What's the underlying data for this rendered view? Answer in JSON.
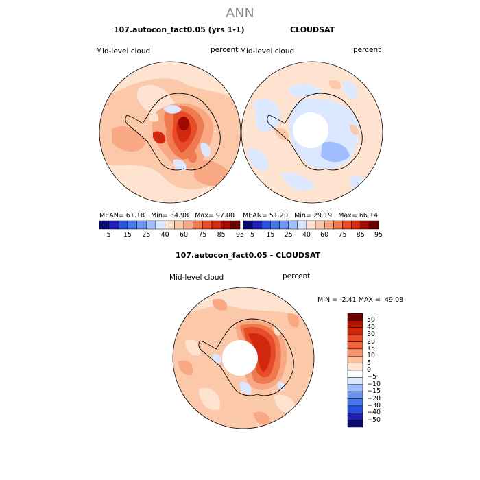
{
  "page_title": "ANN",
  "colors": {
    "continent_line": "#000000",
    "mask": "#ffffff",
    "bg_panel": "#fde3d0"
  },
  "panels": [
    {
      "title": "107.autocon_fact0.05 (yrs 1-1)",
      "left_label": "Mid-level cloud",
      "right_label": "percent",
      "stats": {
        "mean_label": "MEAN=",
        "mean": "61.18",
        "min_label": "Min=",
        "min": "34.98",
        "max_label": "Max=",
        "max": "97.00"
      }
    },
    {
      "title": "CLOUDSAT",
      "left_label": "Mid-level cloud",
      "right_label": "percent",
      "stats": {
        "mean_label": "MEAN=",
        "mean": "51.20",
        "min_label": "Min=",
        "min": "29.19",
        "max_label": "Max=",
        "max": "66.14"
      }
    },
    {
      "title": "107.autocon_fact0.05 - CLOUDSAT",
      "left_label": "Mid-level cloud",
      "right_label": "percent",
      "stats": {
        "min_label": "MIN =",
        "min": "-2.41",
        "max_label": "MAX =",
        "max": "49.08"
      }
    }
  ],
  "colorbar_abs": {
    "colors": [
      "#0a0a6e",
      "#1e1eb4",
      "#2850dc",
      "#4678eb",
      "#6e96f0",
      "#a0beff",
      "#dce8ff",
      "#fde3d0",
      "#fcc8aa",
      "#f8a882",
      "#f07a50",
      "#e64c28",
      "#d22810",
      "#a00a00",
      "#6e0000"
    ],
    "ticks": [
      "5",
      "15",
      "25",
      "40",
      "60",
      "75",
      "85",
      "95"
    ]
  },
  "colorbar_diff": {
    "colors": [
      "#6e0000",
      "#b41400",
      "#d22810",
      "#e64c28",
      "#f0643c",
      "#f8966e",
      "#fcbe9c",
      "#fde3d0",
      "#ffffff",
      "#dce8ff",
      "#a0beff",
      "#6e96f0",
      "#4678eb",
      "#2850dc",
      "#1e1eb4",
      "#0a0a6e"
    ],
    "ticks": [
      "50",
      "40",
      "30",
      "20",
      "15",
      "10",
      "5",
      "0",
      "−5",
      "−10",
      "−15",
      "−20",
      "−30",
      "−40",
      "−50"
    ]
  }
}
